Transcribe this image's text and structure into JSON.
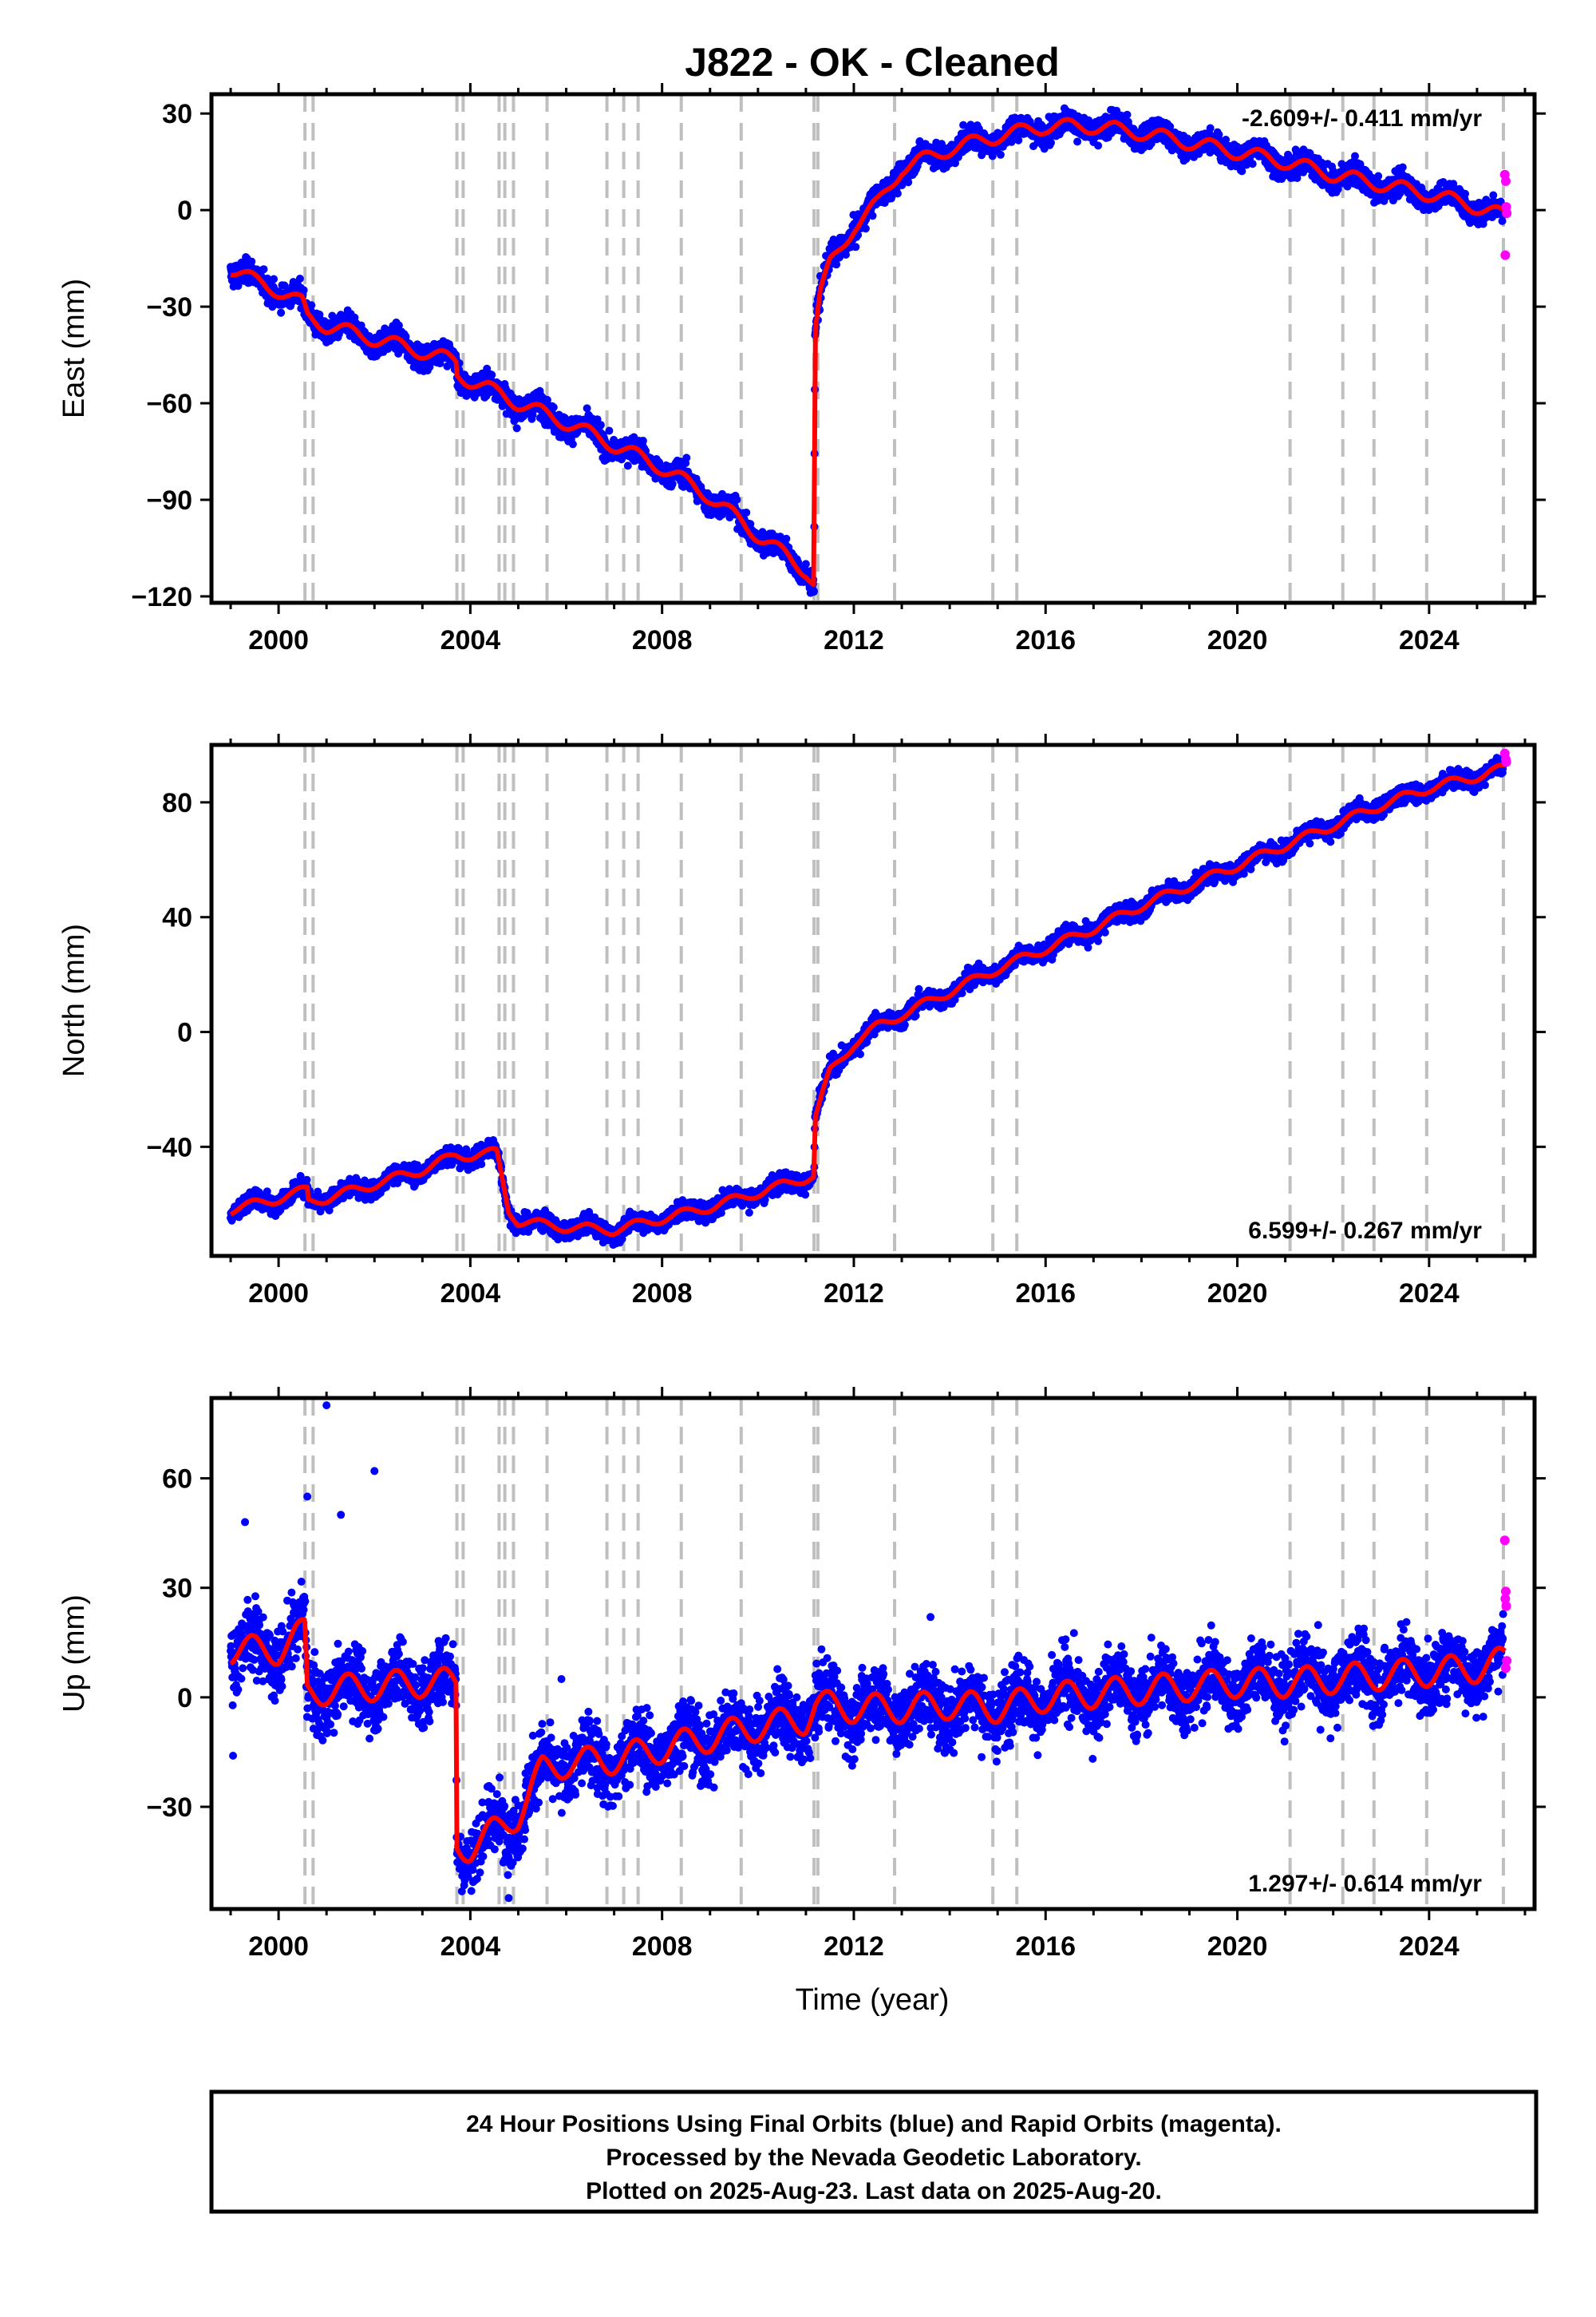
{
  "title": "J822  - OK - Cleaned",
  "xlabel": "Time (year)",
  "footer": {
    "lines": [
      "24 Hour Positions Using Final Orbits (blue) and Rapid Orbits (magenta).",
      "Processed by the Nevada Geodetic Laboratory.",
      "Plotted on 2025-Aug-23. Last data on 2025-Aug-20."
    ]
  },
  "colors": {
    "final_orbits": "#0000ff",
    "rapid_orbits": "#ff00ff",
    "model": "#ff0000",
    "offsets": "#bfbfbf",
    "frame": "#000000"
  },
  "chart_data": [
    {
      "type": "scatter",
      "component": "East",
      "ylabel": "East (mm)",
      "rate_label": "-2.609+/- 0.411 mm/yr",
      "xlim": [
        1998.6,
        2026.2
      ],
      "ylim": [
        -122,
        36
      ],
      "xticks": [
        2000,
        2004,
        2008,
        2012,
        2016,
        2020,
        2024
      ],
      "yticks": [
        -120,
        -90,
        -60,
        -30,
        0,
        30
      ],
      "ytick_labels": [
        "−120",
        "−90",
        "−60",
        "−30",
        "0",
        "30"
      ],
      "model_anchors": [
        [
          1999.0,
          -18
        ],
        [
          1999.5,
          -22
        ],
        [
          2000.0,
          -25
        ],
        [
          2000.5,
          -29
        ],
        [
          2000.6,
          -33
        ],
        [
          2001.0,
          -36
        ],
        [
          2002.0,
          -40
        ],
        [
          2003.0,
          -44
        ],
        [
          2003.7,
          -47
        ],
        [
          2003.72,
          -51
        ],
        [
          2004.0,
          -53
        ],
        [
          2004.6,
          -57
        ],
        [
          2004.62,
          -57
        ],
        [
          2005.0,
          -60
        ],
        [
          2006.0,
          -66
        ],
        [
          2007.0,
          -73
        ],
        [
          2008.0,
          -80
        ],
        [
          2009.0,
          -89
        ],
        [
          2010.0,
          -101
        ],
        [
          2011.0,
          -112
        ],
        [
          2011.17,
          -116
        ],
        [
          2011.19,
          -38
        ],
        [
          2011.3,
          -26
        ],
        [
          2011.5,
          -17
        ],
        [
          2011.8,
          -10
        ],
        [
          2012.0,
          -5
        ],
        [
          2012.5,
          2
        ],
        [
          2013.0,
          13
        ],
        [
          2014.0,
          19
        ],
        [
          2015.0,
          23
        ],
        [
          2016.0,
          26
        ],
        [
          2017.0,
          26
        ],
        [
          2018.0,
          24
        ],
        [
          2019.0,
          21
        ],
        [
          2020.0,
          18
        ],
        [
          2021.0,
          15
        ],
        [
          2022.0,
          11
        ],
        [
          2023.0,
          8
        ],
        [
          2024.0,
          5
        ],
        [
          2025.0,
          1
        ],
        [
          2025.6,
          -2
        ]
      ],
      "annual_amplitude": 2.2,
      "scatter_noise": 2.6,
      "rapid_points": [
        [
          2025.58,
          11
        ],
        [
          2025.6,
          9
        ],
        [
          2025.61,
          1
        ],
        [
          2025.62,
          -1
        ],
        [
          2025.59,
          -14
        ]
      ],
      "offset_epochs": [
        2000.55,
        2000.72,
        2003.72,
        2003.85,
        2004.6,
        2004.72,
        2004.9,
        2005.6,
        2006.85,
        2007.2,
        2007.5,
        2008.4,
        2009.65,
        2011.17,
        2011.25,
        2012.85,
        2014.9,
        2015.4,
        2021.1,
        2022.2,
        2022.85,
        2023.95,
        2025.55
      ]
    },
    {
      "type": "scatter",
      "component": "North",
      "ylabel": "North (mm)",
      "rate_label": "6.599+/- 0.267 mm/yr",
      "xlim": [
        1998.6,
        2026.2
      ],
      "ylim": [
        -78,
        100
      ],
      "xticks": [
        2000,
        2004,
        2008,
        2012,
        2016,
        2020,
        2024
      ],
      "yticks": [
        -40,
        0,
        40,
        80
      ],
      "ytick_labels": [
        "−40",
        "0",
        "40",
        "80"
      ],
      "model_anchors": [
        [
          1999.0,
          -62
        ],
        [
          2000.0,
          -58
        ],
        [
          2000.6,
          -55
        ],
        [
          2000.62,
          -59
        ],
        [
          2001.0,
          -58
        ],
        [
          2002.0,
          -53
        ],
        [
          2003.0,
          -48
        ],
        [
          2003.7,
          -43
        ],
        [
          2004.0,
          -43
        ],
        [
          2004.55,
          -42
        ],
        [
          2004.8,
          -62
        ],
        [
          2005.0,
          -66
        ],
        [
          2006.0,
          -68
        ],
        [
          2007.0,
          -69
        ],
        [
          2008.0,
          -65
        ],
        [
          2009.0,
          -61
        ],
        [
          2010.0,
          -56
        ],
        [
          2011.17,
          -50
        ],
        [
          2011.19,
          -30
        ],
        [
          2011.5,
          -14
        ],
        [
          2012.0,
          -4
        ],
        [
          2012.5,
          2
        ],
        [
          2013.0,
          6
        ],
        [
          2014.0,
          14
        ],
        [
          2015.0,
          22
        ],
        [
          2016.0,
          29
        ],
        [
          2017.0,
          36
        ],
        [
          2018.0,
          44
        ],
        [
          2019.0,
          51
        ],
        [
          2020.0,
          58
        ],
        [
          2021.0,
          65
        ],
        [
          2022.0,
          72
        ],
        [
          2023.0,
          79
        ],
        [
          2024.0,
          85
        ],
        [
          2025.0,
          89
        ],
        [
          2025.6,
          92
        ]
      ],
      "annual_amplitude": 1.6,
      "scatter_noise": 2.2,
      "rapid_points": [
        [
          2025.58,
          97
        ],
        [
          2025.6,
          95
        ],
        [
          2025.61,
          94
        ]
      ],
      "offset_epochs": [
        2000.55,
        2000.72,
        2003.72,
        2003.85,
        2004.6,
        2004.72,
        2004.9,
        2005.6,
        2006.85,
        2007.2,
        2007.5,
        2008.4,
        2009.65,
        2011.17,
        2011.25,
        2012.85,
        2014.9,
        2015.4,
        2021.1,
        2022.2,
        2022.85,
        2023.95,
        2025.55
      ]
    },
    {
      "type": "scatter",
      "component": "Up",
      "ylabel": "Up (mm)",
      "rate_label": "1.297+/- 0.614 mm/yr",
      "xlim": [
        1998.6,
        2026.2
      ],
      "ylim": [
        -58,
        82
      ],
      "xticks": [
        2000,
        2004,
        2008,
        2012,
        2016,
        2020,
        2024
      ],
      "yticks": [
        -30,
        0,
        30,
        60
      ],
      "ytick_labels": [
        "−30",
        "0",
        "30",
        "60"
      ],
      "model_anchors": [
        [
          1999.0,
          13
        ],
        [
          2000.0,
          13
        ],
        [
          2000.55,
          18
        ],
        [
          2000.6,
          1
        ],
        [
          2001.0,
          2
        ],
        [
          2002.0,
          3
        ],
        [
          2003.0,
          4
        ],
        [
          2003.7,
          4
        ],
        [
          2003.72,
          -41
        ],
        [
          2004.0,
          -41
        ],
        [
          2004.6,
          -36
        ],
        [
          2005.0,
          -32
        ],
        [
          2005.5,
          -20
        ],
        [
          2006.0,
          -18
        ],
        [
          2007.0,
          -17
        ],
        [
          2008.0,
          -14
        ],
        [
          2009.0,
          -11
        ],
        [
          2010.0,
          -8
        ],
        [
          2011.0,
          -6
        ],
        [
          2011.2,
          -2
        ],
        [
          2012.0,
          -3
        ],
        [
          2013.0,
          -3
        ],
        [
          2014.0,
          -2
        ],
        [
          2015.0,
          -3
        ],
        [
          2016.0,
          0
        ],
        [
          2017.0,
          1
        ],
        [
          2018.0,
          2
        ],
        [
          2019.0,
          3
        ],
        [
          2020.0,
          4
        ],
        [
          2021.0,
          4
        ],
        [
          2022.0,
          5
        ],
        [
          2023.0,
          6
        ],
        [
          2024.0,
          7
        ],
        [
          2025.0,
          8
        ],
        [
          2025.6,
          10
        ]
      ],
      "annual_amplitude": 4.0,
      "scatter_noise": 6.5,
      "outliers": [
        [
          2001.0,
          80
        ],
        [
          2002.0,
          62
        ],
        [
          2001.3,
          50
        ],
        [
          1999.3,
          48
        ],
        [
          2000.6,
          55
        ],
        [
          2005.9,
          5
        ],
        [
          2013.6,
          22
        ],
        [
          2004.8,
          -55
        ],
        [
          1999.05,
          -16
        ]
      ],
      "rapid_points": [
        [
          2025.58,
          43
        ],
        [
          2025.6,
          29
        ],
        [
          2025.59,
          27
        ],
        [
          2025.61,
          25
        ],
        [
          2025.62,
          10
        ],
        [
          2025.6,
          8
        ]
      ],
      "offset_epochs": [
        2000.55,
        2000.72,
        2003.72,
        2003.85,
        2004.6,
        2004.72,
        2004.9,
        2005.6,
        2006.85,
        2007.2,
        2007.5,
        2008.4,
        2009.65,
        2011.17,
        2011.25,
        2012.85,
        2014.9,
        2015.4,
        2021.1,
        2022.2,
        2022.85,
        2023.95,
        2025.55
      ]
    }
  ]
}
